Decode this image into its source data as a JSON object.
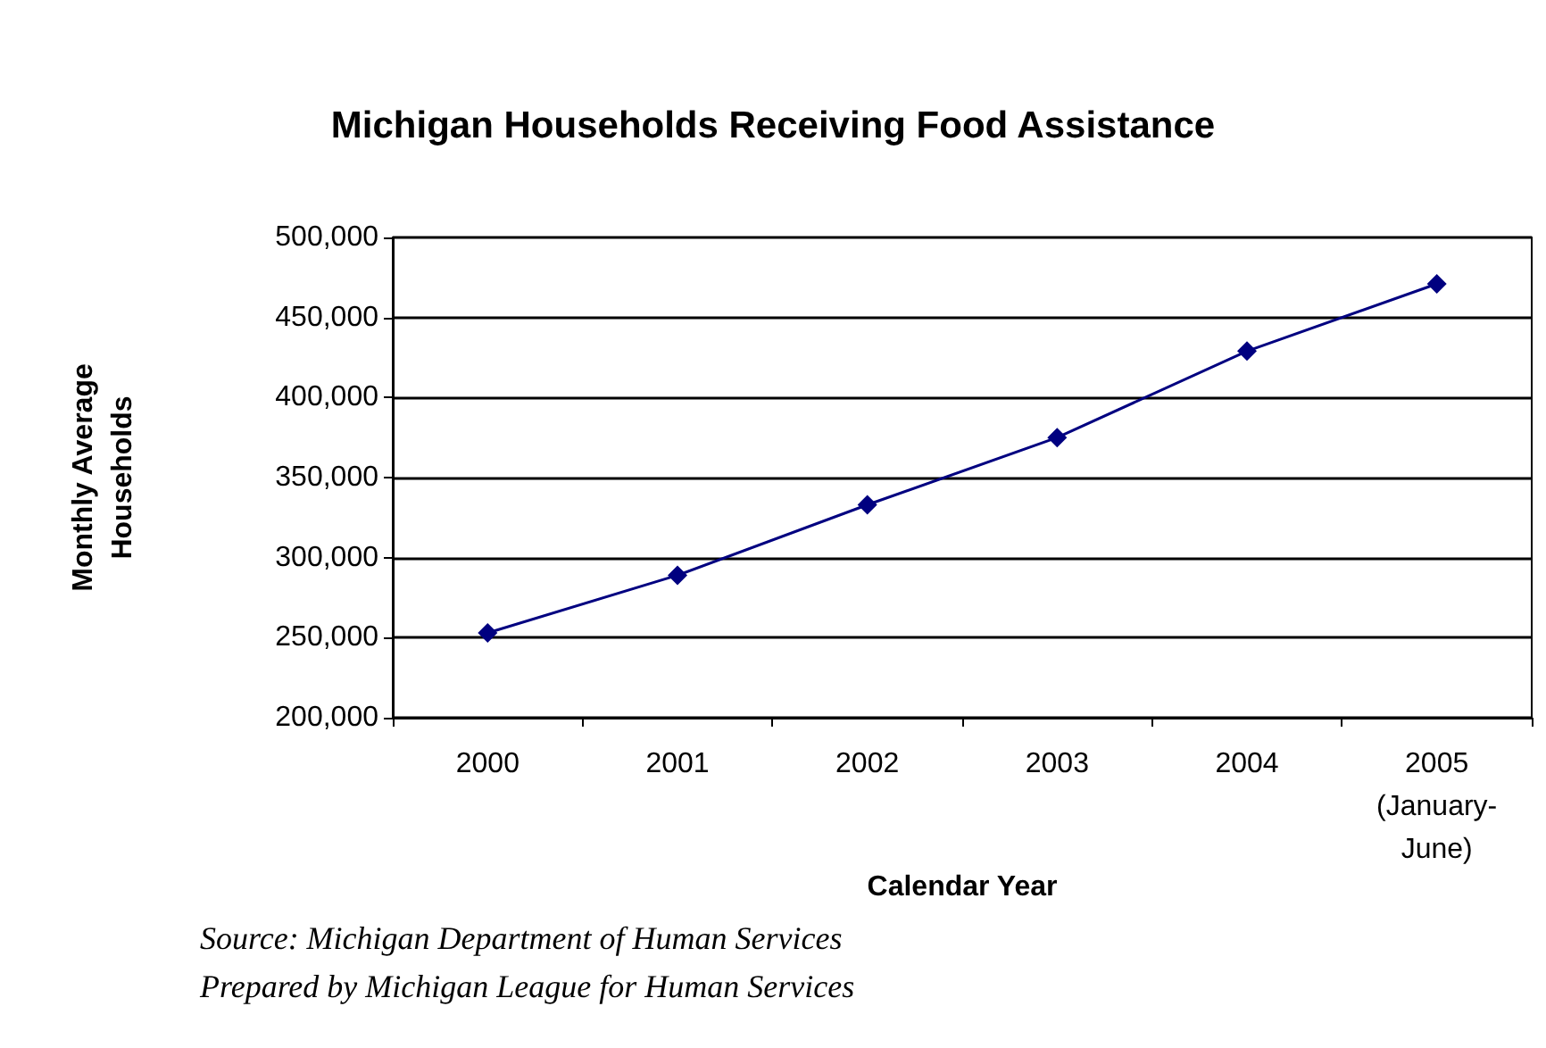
{
  "chart_data": {
    "type": "line",
    "title": "Michigan Households Receiving Food Assistance",
    "xlabel": "Calendar Year",
    "ylabel": "Monthly Average\nHouseholds",
    "categories": [
      "2000",
      "2001",
      "2002",
      "2003",
      "2004",
      "2005\n(January-\nJune)"
    ],
    "series": [
      {
        "color": "#000080",
        "values": [
          253000,
          289000,
          333000,
          375000,
          429000,
          471000
        ]
      }
    ],
    "ylim": [
      200000,
      500000
    ],
    "yticks": [
      {
        "value": 200000,
        "label": "200,000"
      },
      {
        "value": 250000,
        "label": "250,000"
      },
      {
        "value": 300000,
        "label": "300,000"
      },
      {
        "value": 350000,
        "label": "350,000"
      },
      {
        "value": 400000,
        "label": "400,000"
      },
      {
        "value": 450000,
        "label": "450,000"
      },
      {
        "value": 500000,
        "label": "500,000"
      }
    ],
    "grid": "y",
    "marker": "diamond",
    "line_style": "solid",
    "annotations": [
      "Source: Michigan Department of Human Services\nPrepared by Michigan League for Human Services"
    ]
  }
}
